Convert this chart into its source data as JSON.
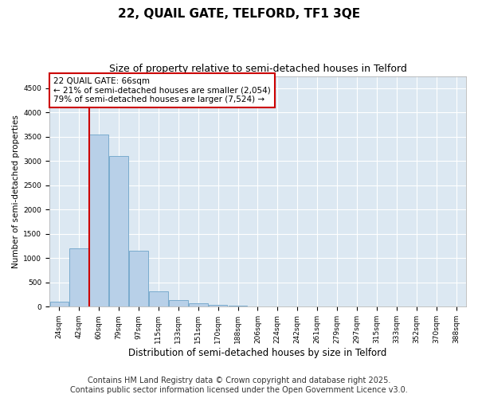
{
  "title_line1": "22, QUAIL GATE, TELFORD, TF1 3QE",
  "title_line2": "Size of property relative to semi-detached houses in Telford",
  "xlabel": "Distribution of semi-detached houses by size in Telford",
  "ylabel": "Number of semi-detached properties",
  "categories": [
    "24sqm",
    "42sqm",
    "60sqm",
    "79sqm",
    "97sqm",
    "115sqm",
    "133sqm",
    "151sqm",
    "170sqm",
    "188sqm",
    "206sqm",
    "224sqm",
    "242sqm",
    "261sqm",
    "279sqm",
    "297sqm",
    "315sqm",
    "333sqm",
    "352sqm",
    "370sqm",
    "388sqm"
  ],
  "values": [
    100,
    1200,
    3550,
    3100,
    1150,
    310,
    130,
    70,
    40,
    15,
    5,
    2,
    1,
    0,
    0,
    0,
    0,
    0,
    0,
    0,
    0
  ],
  "bar_color": "#b8d0e8",
  "bar_edge_color": "#7aabce",
  "vline_color": "#cc0000",
  "vline_bin": 2,
  "annotation_title": "22 QUAIL GATE: 66sqm",
  "annotation_line2": "← 21% of semi-detached houses are smaller (2,054)",
  "annotation_line3": "79% of semi-detached houses are larger (7,524) →",
  "annotation_box_color": "#cc0000",
  "ylim": [
    0,
    4750
  ],
  "yticks": [
    0,
    500,
    1000,
    1500,
    2000,
    2500,
    3000,
    3500,
    4000,
    4500
  ],
  "background_color": "#dce8f2",
  "footer_line1": "Contains HM Land Registry data © Crown copyright and database right 2025.",
  "footer_line2": "Contains public sector information licensed under the Open Government Licence v3.0.",
  "title_fontsize": 11,
  "subtitle_fontsize": 9,
  "footer_fontsize": 7,
  "ylabel_fontsize": 7.5,
  "xlabel_fontsize": 8.5,
  "tick_fontsize": 6.5,
  "annotation_fontsize": 7.5
}
